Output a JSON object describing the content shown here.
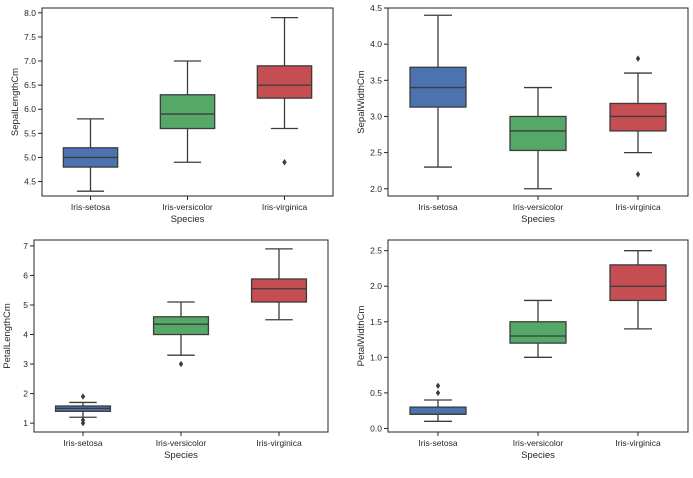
{
  "colors": {
    "Iris-setosa": "#4c72b0",
    "Iris-versicolor": "#55a868",
    "Iris-virginica": "#c44e52"
  },
  "chart_data": [
    {
      "type": "box",
      "xlabel": "Species",
      "ylabel": "SepalLengthCm",
      "ylim": [
        4.2,
        8.1
      ],
      "yticks": [
        4.5,
        5.0,
        5.5,
        6.0,
        6.5,
        7.0,
        7.5,
        8.0
      ],
      "ytick_labels": [
        "4.5",
        "5.0",
        "5.5",
        "6.0",
        "6.5",
        "7.0",
        "7.5",
        "8.0"
      ],
      "categories": [
        "Iris-setosa",
        "Iris-versicolor",
        "Iris-virginica"
      ],
      "boxes": [
        {
          "min": 4.3,
          "q1": 4.8,
          "median": 5.0,
          "q3": 5.2,
          "max": 5.8,
          "outliers": []
        },
        {
          "min": 4.9,
          "q1": 5.6,
          "median": 5.9,
          "q3": 6.3,
          "max": 7.0,
          "outliers": []
        },
        {
          "min": 5.6,
          "q1": 6.23,
          "median": 6.5,
          "q3": 6.9,
          "max": 7.9,
          "outliers": [
            4.9
          ]
        }
      ]
    },
    {
      "type": "box",
      "xlabel": "Species",
      "ylabel": "SepalWidthCm",
      "ylim": [
        1.9,
        4.5
      ],
      "yticks": [
        2.0,
        2.5,
        3.0,
        3.5,
        4.0,
        4.5
      ],
      "ytick_labels": [
        "2.0",
        "2.5",
        "3.0",
        "3.5",
        "4.0",
        "4.5"
      ],
      "categories": [
        "Iris-setosa",
        "Iris-versicolor",
        "Iris-virginica"
      ],
      "boxes": [
        {
          "min": 2.3,
          "q1": 3.13,
          "median": 3.4,
          "q3": 3.68,
          "max": 4.4,
          "outliers": []
        },
        {
          "min": 2.0,
          "q1": 2.53,
          "median": 2.8,
          "q3": 3.0,
          "max": 3.4,
          "outliers": []
        },
        {
          "min": 2.5,
          "q1": 2.8,
          "median": 3.0,
          "q3": 3.18,
          "max": 3.6,
          "outliers": [
            3.8,
            2.2
          ]
        }
      ]
    },
    {
      "type": "box",
      "xlabel": "Species",
      "ylabel": "PetalLengthCm",
      "ylim": [
        0.7,
        7.2
      ],
      "yticks": [
        1,
        2,
        3,
        4,
        5,
        6,
        7
      ],
      "ytick_labels": [
        "1",
        "2",
        "3",
        "4",
        "5",
        "6",
        "7"
      ],
      "categories": [
        "Iris-setosa",
        "Iris-versicolor",
        "Iris-virginica"
      ],
      "boxes": [
        {
          "min": 1.2,
          "q1": 1.4,
          "median": 1.5,
          "q3": 1.58,
          "max": 1.7,
          "outliers": [
            1.9,
            1.1,
            1.0
          ]
        },
        {
          "min": 3.3,
          "q1": 4.0,
          "median": 4.35,
          "q3": 4.6,
          "max": 5.1,
          "outliers": [
            3.0
          ]
        },
        {
          "min": 4.5,
          "q1": 5.1,
          "median": 5.55,
          "q3": 5.88,
          "max": 6.9,
          "outliers": []
        }
      ]
    },
    {
      "type": "box",
      "xlabel": "Species",
      "ylabel": "PetalWidthCm",
      "ylim": [
        -0.05,
        2.65
      ],
      "yticks": [
        0.0,
        0.5,
        1.0,
        1.5,
        2.0,
        2.5
      ],
      "ytick_labels": [
        "0.0",
        "0.5",
        "1.0",
        "1.5",
        "2.0",
        "2.5"
      ],
      "categories": [
        "Iris-setosa",
        "Iris-versicolor",
        "Iris-virginica"
      ],
      "boxes": [
        {
          "min": 0.1,
          "q1": 0.2,
          "median": 0.2,
          "q3": 0.3,
          "max": 0.4,
          "outliers": [
            0.5,
            0.6
          ]
        },
        {
          "min": 1.0,
          "q1": 1.2,
          "median": 1.3,
          "q3": 1.5,
          "max": 1.8,
          "outliers": []
        },
        {
          "min": 1.4,
          "q1": 1.8,
          "median": 2.0,
          "q3": 2.3,
          "max": 2.5,
          "outliers": []
        }
      ]
    }
  ]
}
